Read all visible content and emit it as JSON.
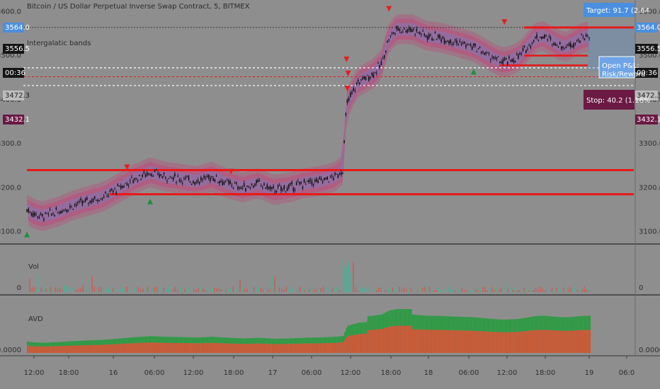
{
  "header": {
    "title": "Bitcoin / US Dollar Perpetual Inverse Swap Contract, 5, BITMEX",
    "indicator": "Intergalatic bands"
  },
  "panes": {
    "volume_label": "Vol",
    "avd_label": "AVD"
  },
  "left_tags": [
    "3564.0",
    "3556.5",
    "00:36",
    "3472.3",
    "3432.1"
  ],
  "right_tags": [
    "3564.0",
    "3556.5",
    "00:36",
    "3472.3",
    "3432.1"
  ],
  "boxes": {
    "target": "Target: 91.7 (2.64",
    "open_pl": "Open P&L: ",
    "risk": "Risk/Reward",
    "stop": "Stop: 40.2 (1.16%"
  },
  "colors": {
    "background": "#8e8e8e",
    "candle": "#111111",
    "band_outer": "#c2457a",
    "band_inner": "#7a7cc0",
    "support_line": "#e81818",
    "sell_marker": "#e02020",
    "buy_marker": "#1f8f3a",
    "vol_up": "#3fb59a",
    "vol_down": "#d2564a",
    "avd_green": "#2f9a45",
    "avd_red": "#c85a35",
    "target_box": "#4a8fe0",
    "stop_box": "#6b1a44"
  },
  "chart_data": [
    {
      "type": "line",
      "series_kind": "candlestick-with-bands",
      "x_ticks": [
        "12:00",
        "18:00",
        "16",
        "06:00",
        "12:00",
        "18:00",
        "17",
        "06:00",
        "12:00",
        "18:00",
        "18",
        "06:00",
        "12:00",
        "18:00",
        "19",
        "06:0"
      ],
      "y_ticks": [
        3600.0,
        3500.0,
        3400.0,
        3300.0,
        3200.0,
        3100.0
      ],
      "ylim": [
        3080,
        3620
      ],
      "price_path": [
        [
          0,
          3150
        ],
        [
          10,
          3140
        ],
        [
          20,
          3135
        ],
        [
          40,
          3145
        ],
        [
          60,
          3160
        ],
        [
          80,
          3170
        ],
        [
          100,
          3180
        ],
        [
          120,
          3200
        ],
        [
          140,
          3220
        ],
        [
          160,
          3235
        ],
        [
          180,
          3225
        ],
        [
          200,
          3220
        ],
        [
          220,
          3215
        ],
        [
          240,
          3225
        ],
        [
          260,
          3210
        ],
        [
          280,
          3200
        ],
        [
          300,
          3210
        ],
        [
          320,
          3195
        ],
        [
          340,
          3200
        ],
        [
          360,
          3210
        ],
        [
          380,
          3215
        ],
        [
          400,
          3225
        ],
        [
          410,
          3240
        ],
        [
          415,
          3390
        ],
        [
          430,
          3440
        ],
        [
          450,
          3460
        ],
        [
          460,
          3480
        ],
        [
          470,
          3540
        ],
        [
          480,
          3560
        ],
        [
          500,
          3560
        ],
        [
          520,
          3545
        ],
        [
          540,
          3540
        ],
        [
          560,
          3530
        ],
        [
          580,
          3520
        ],
        [
          600,
          3500
        ],
        [
          610,
          3490
        ],
        [
          620,
          3485
        ],
        [
          630,
          3490
        ],
        [
          640,
          3500
        ],
        [
          650,
          3520
        ],
        [
          660,
          3540
        ],
        [
          670,
          3545
        ],
        [
          680,
          3535
        ],
        [
          690,
          3525
        ],
        [
          700,
          3520
        ],
        [
          710,
          3530
        ],
        [
          720,
          3540
        ],
        [
          730,
          3545
        ]
      ],
      "horizontal_levels": [
        3564.0,
        3556.5,
        3472.3,
        3432.1,
        3240,
        3185
      ],
      "sell_markers": [
        [
          130,
          3240
        ],
        [
          265,
          3230
        ],
        [
          415,
          3485
        ],
        [
          417,
          3453
        ],
        [
          416,
          3419
        ],
        [
          470,
          3600
        ],
        [
          620,
          3570
        ]
      ],
      "buy_markers": [
        [
          0,
          3100
        ],
        [
          160,
          3175
        ],
        [
          580,
          3470
        ]
      ]
    },
    {
      "type": "bar",
      "name": "Vol",
      "note_levels": [
        "0"
      ]
    },
    {
      "type": "area",
      "name": "AVD",
      "y_ticks": [
        "0.0000"
      ]
    }
  ]
}
